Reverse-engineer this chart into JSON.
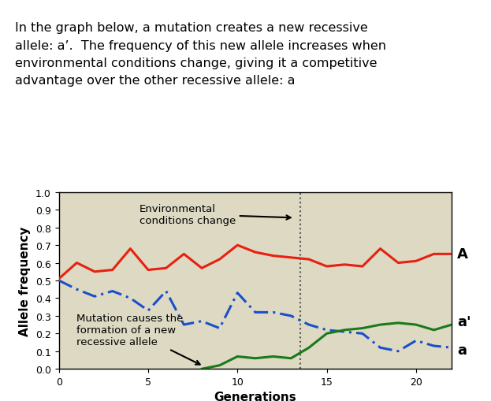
{
  "title_text": "In the graph below, a mutation creates a new recessive\nallele: a’.  The frequency of this new allele increases when\nenvironmental conditions change, giving it a competitive\nadvantage over the other recessive allele: a",
  "xlabel": "Generations",
  "ylabel": "Allele frequency",
  "background_color": "#ddd9c3",
  "fig_color": "#ffffff",
  "xlim": [
    0,
    22
  ],
  "ylim": [
    0,
    1.0
  ],
  "yticks": [
    0,
    0.1,
    0.2,
    0.3,
    0.4,
    0.5,
    0.6,
    0.7,
    0.8,
    0.9,
    1.0
  ],
  "xticks": [
    0,
    5,
    10,
    15,
    20
  ],
  "dotted_line_x": 13.5,
  "A_color": "#e82010",
  "a_prime_color": "#1a7a1a",
  "a_color": "#1a4fcc",
  "A_x": [
    0,
    1,
    2,
    3,
    4,
    5,
    6,
    7,
    8,
    9,
    10,
    11,
    12,
    13,
    14,
    15,
    16,
    17,
    18,
    19,
    20,
    21,
    22
  ],
  "A_y": [
    0.51,
    0.6,
    0.55,
    0.56,
    0.68,
    0.56,
    0.57,
    0.65,
    0.57,
    0.62,
    0.7,
    0.66,
    0.64,
    0.63,
    0.62,
    0.58,
    0.59,
    0.58,
    0.68,
    0.6,
    0.61,
    0.65,
    0.65
  ],
  "a_x": [
    0,
    1,
    2,
    3,
    4,
    5,
    6,
    7,
    8,
    9,
    10,
    11,
    12,
    13,
    14,
    15,
    16,
    17,
    18,
    19,
    20,
    21,
    22
  ],
  "a_y": [
    0.5,
    0.45,
    0.41,
    0.44,
    0.4,
    0.33,
    0.44,
    0.25,
    0.27,
    0.23,
    0.43,
    0.32,
    0.32,
    0.3,
    0.25,
    0.22,
    0.21,
    0.2,
    0.12,
    0.1,
    0.16,
    0.13,
    0.12
  ],
  "ap_x": [
    8,
    9,
    10,
    11,
    12,
    13,
    14,
    15,
    16,
    17,
    18,
    19,
    20,
    21,
    22
  ],
  "ap_y": [
    0.0,
    0.02,
    0.07,
    0.06,
    0.07,
    0.06,
    0.12,
    0.2,
    0.22,
    0.23,
    0.25,
    0.26,
    0.25,
    0.22,
    0.25
  ],
  "title_fontsize": 11.5,
  "axis_fontsize": 11,
  "tick_fontsize": 9,
  "label_fontsize": 13
}
